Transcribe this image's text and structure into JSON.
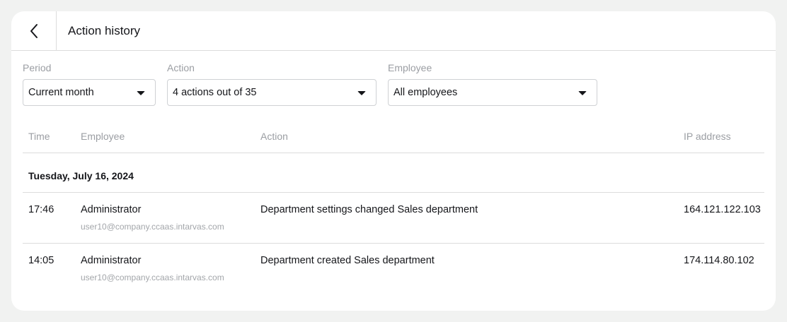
{
  "header": {
    "title": "Action history"
  },
  "filters": {
    "period": {
      "label": "Period",
      "value": "Current month"
    },
    "action": {
      "label": "Action",
      "value": "4 actions out of 35"
    },
    "employee": {
      "label": "Employee",
      "value": "All employees"
    }
  },
  "table": {
    "columns": {
      "time": "Time",
      "employee": "Employee",
      "action": "Action",
      "ip": "IP address"
    },
    "date_group": "Tuesday, July 16, 2024",
    "rows": [
      {
        "time": "17:46",
        "employee": "Administrator",
        "email": "user10@company.ccaas.intarvas.com",
        "action": "Department settings changed Sales department",
        "ip": "164.121.122.103"
      },
      {
        "time": "14:05",
        "employee": "Administrator",
        "email": "user10@company.ccaas.intarvas.com",
        "action": "Department created Sales department",
        "ip": "174.114.80.102"
      }
    ]
  },
  "icons": {
    "back": "chevron-left-icon",
    "dropdown": "caret-down-icon"
  }
}
